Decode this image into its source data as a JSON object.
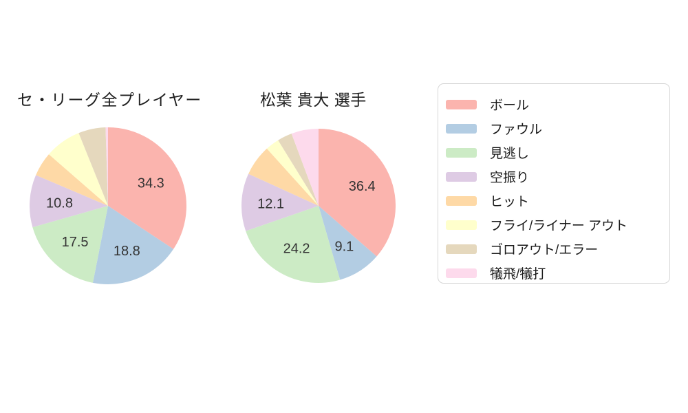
{
  "chart_data": [
    {
      "type": "pie",
      "title": "セ・リーグ全プレイヤー",
      "categories": [
        "ボール",
        "ファウル",
        "見逃し",
        "空振り",
        "ヒット",
        "フライ/ライナー アウト",
        "ゴロアウト/エラー",
        "犠飛/犠打"
      ],
      "values": [
        34.3,
        18.8,
        17.5,
        10.8,
        5.0,
        7.5,
        5.6,
        0.5
      ],
      "labels_shown": [
        "34.3",
        "18.8",
        "17.5",
        "10.8",
        null,
        null,
        null,
        null
      ],
      "start_angle": "top",
      "direction": "clockwise",
      "legend_position": "right"
    },
    {
      "type": "pie",
      "title": "松葉 貴大 選手",
      "categories": [
        "ボール",
        "ファウル",
        "見逃し",
        "空振り",
        "ヒット",
        "フライ/ライナー アウト",
        "ゴロアウト/エラー",
        "犠飛/犠打"
      ],
      "values": [
        36.4,
        9.1,
        24.2,
        12.1,
        6.5,
        2.9,
        3.1,
        5.7
      ],
      "labels_shown": [
        "36.4",
        "9.1",
        "24.2",
        "12.1",
        null,
        null,
        null,
        null
      ],
      "start_angle": "top",
      "direction": "clockwise",
      "legend_position": "right"
    }
  ],
  "legend": {
    "items": [
      {
        "label": "ボール",
        "color": "#fbb4ae"
      },
      {
        "label": "ファウル",
        "color": "#b3cde3"
      },
      {
        "label": "見逃し",
        "color": "#ccebc5"
      },
      {
        "label": "空振り",
        "color": "#decbe4"
      },
      {
        "label": "ヒット",
        "color": "#fed9a6"
      },
      {
        "label": "フライ/ライナー アウト",
        "color": "#ffffcc"
      },
      {
        "label": "ゴロアウト/エラー",
        "color": "#e5d8bd"
      },
      {
        "label": "犠飛/犠打",
        "color": "#fddaec"
      }
    ]
  },
  "colors": {
    "background": "#ffffff",
    "title_text": "#1f1f1f",
    "slice_label_text": "#333333",
    "legend_border": "#d6d6d6"
  }
}
